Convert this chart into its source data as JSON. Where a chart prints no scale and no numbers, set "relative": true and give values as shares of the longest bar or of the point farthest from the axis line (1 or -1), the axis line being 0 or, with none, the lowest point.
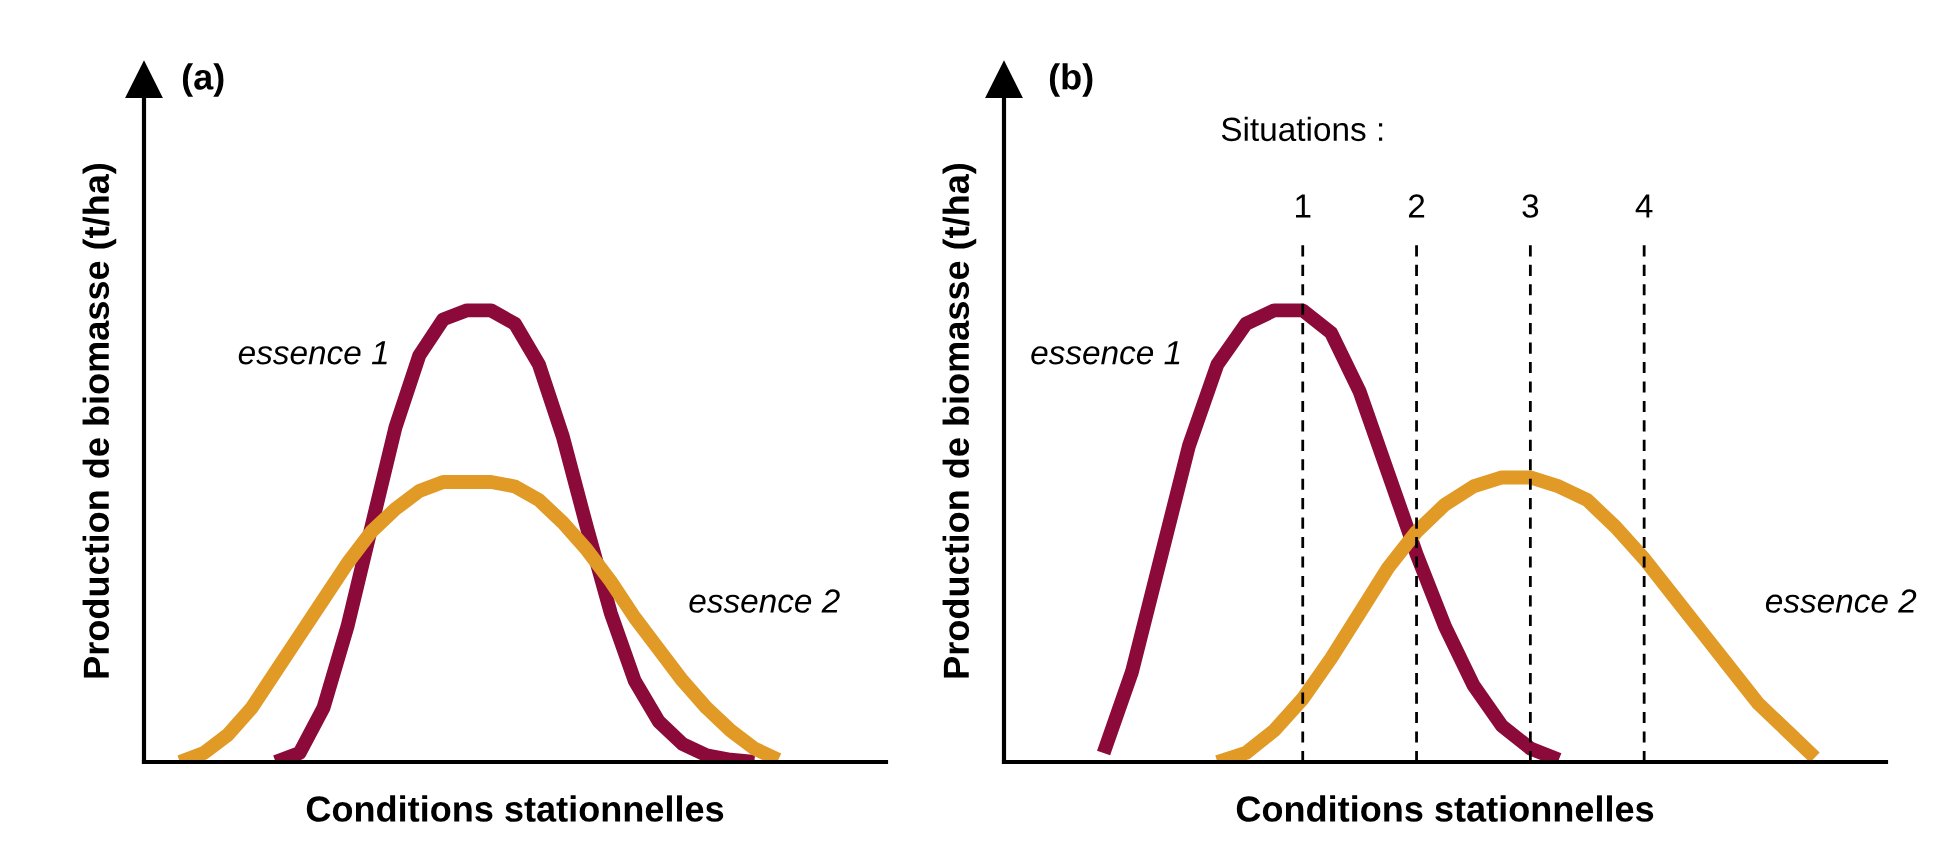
{
  "chart_data": [
    {
      "type": "line",
      "title": "(a)",
      "xlabel": "Conditions stationnelles",
      "ylabel": "Production de biomasse (t/ha)",
      "relative": true,
      "tick_labels": false,
      "legend": false,
      "categories": [
        null,
        null,
        null,
        null,
        null,
        null,
        null,
        null,
        null,
        null,
        null,
        null,
        null,
        null,
        null,
        null,
        null,
        null,
        null,
        null,
        null,
        null,
        null,
        null,
        null,
        null,
        null,
        null,
        null,
        null,
        null
      ],
      "series": [
        {
          "name": "essence 1",
          "color": "#8b0a3a",
          "values": [
            null,
            null,
            null,
            null,
            null,
            0,
            0.02,
            0.12,
            0.3,
            0.52,
            0.74,
            0.9,
            0.98,
            1.0,
            1.0,
            0.97,
            0.88,
            0.72,
            0.52,
            0.33,
            0.18,
            0.09,
            0.04,
            0.015,
            0.005,
            0,
            null,
            null,
            null,
            null,
            null
          ]
        },
        {
          "name": "essence 2",
          "color": "#e09a25",
          "values": [
            null,
            0,
            0.02,
            0.06,
            0.12,
            0.2,
            0.28,
            0.36,
            0.44,
            0.51,
            0.56,
            0.6,
            0.62,
            0.62,
            0.62,
            0.61,
            0.58,
            0.53,
            0.47,
            0.4,
            0.32,
            0.25,
            0.18,
            0.12,
            0.07,
            0.03,
            0.005,
            null,
            null,
            null,
            null
          ]
        }
      ]
    },
    {
      "type": "line",
      "title": "(b)",
      "xlabel": "Conditions stationnelles",
      "ylabel": "Production de biomasse (t/ha)",
      "relative": true,
      "tick_labels": "x",
      "legend": false,
      "annotations": [
        "Situations :"
      ],
      "ref_lines": [
        {
          "axis": "x",
          "value": "1",
          "line_style": "dashed",
          "color": "#000000"
        },
        {
          "axis": "x",
          "value": "2",
          "line_style": "dashed",
          "color": "#000000"
        },
        {
          "axis": "x",
          "value": "3",
          "line_style": "dashed",
          "color": "#000000"
        },
        {
          "axis": "x",
          "value": "4",
          "line_style": "dashed",
          "color": "#000000"
        }
      ],
      "categories": [
        null,
        null,
        null,
        null,
        null,
        null,
        null,
        null,
        null,
        null,
        "1",
        null,
        null,
        null,
        "2",
        null,
        null,
        null,
        "3",
        null,
        null,
        null,
        "4",
        null,
        null,
        null,
        null,
        null,
        null,
        null,
        null
      ],
      "series": [
        {
          "name": "essence 1",
          "color": "#8b0a3a",
          "values": [
            null,
            null,
            null,
            0.02,
            0.2,
            0.45,
            0.7,
            0.88,
            0.97,
            1.0,
            1.0,
            0.95,
            0.82,
            0.64,
            0.46,
            0.3,
            0.17,
            0.08,
            0.03,
            0.005,
            null,
            null,
            null,
            null,
            null,
            null,
            null,
            null,
            null,
            null,
            null
          ]
        },
        {
          "name": "essence 2",
          "color": "#e09a25",
          "values": [
            null,
            null,
            null,
            null,
            null,
            null,
            null,
            0,
            0.02,
            0.07,
            0.14,
            0.23,
            0.33,
            0.43,
            0.51,
            0.57,
            0.61,
            0.63,
            0.63,
            0.61,
            0.58,
            0.52,
            0.45,
            0.37,
            0.29,
            0.21,
            0.13,
            0.07,
            0.01,
            null,
            null
          ]
        }
      ]
    }
  ]
}
